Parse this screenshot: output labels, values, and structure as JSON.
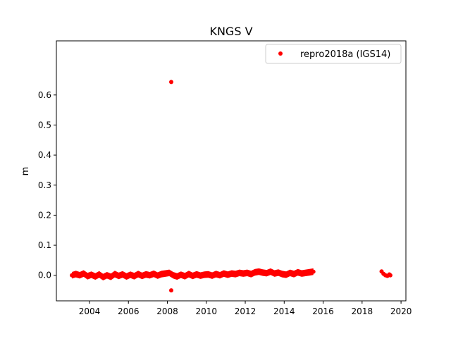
{
  "chart_data": {
    "type": "scatter",
    "title": "KNGS V",
    "xlabel": "",
    "ylabel": "m",
    "xlim": [
      2002.3,
      2020.25
    ],
    "ylim": [
      -0.085,
      0.78
    ],
    "x_ticks": [
      2004,
      2006,
      2008,
      2010,
      2012,
      2014,
      2016,
      2018,
      2020
    ],
    "y_ticks": [
      0.0,
      0.1,
      0.2,
      0.3,
      0.4,
      0.5,
      0.6
    ],
    "y_tick_labels": [
      "0.0",
      "0.1",
      "0.2",
      "0.3",
      "0.4",
      "0.5",
      "0.6"
    ],
    "grid": false,
    "legend_position": "upper right",
    "series": [
      {
        "name": "repro2018a (IGS14)",
        "color": "#ff0000",
        "marker": "circle",
        "x": [
          2003.1,
          2003.3,
          2003.5,
          2003.7,
          2003.9,
          2004.1,
          2004.3,
          2004.5,
          2004.7,
          2004.9,
          2005.1,
          2005.3,
          2005.5,
          2005.7,
          2005.9,
          2006.1,
          2006.3,
          2006.5,
          2006.7,
          2006.9,
          2007.1,
          2007.3,
          2007.5,
          2007.7,
          2007.9,
          2008.1,
          2008.3,
          2008.5,
          2008.7,
          2008.9,
          2009.1,
          2009.3,
          2009.5,
          2009.7,
          2009.9,
          2010.1,
          2010.3,
          2010.5,
          2010.7,
          2010.9,
          2011.1,
          2011.3,
          2011.5,
          2011.7,
          2011.9,
          2012.1,
          2012.3,
          2012.5,
          2012.7,
          2012.9,
          2013.1,
          2013.3,
          2013.5,
          2013.7,
          2013.9,
          2014.1,
          2014.3,
          2014.5,
          2014.7,
          2014.9,
          2015.1,
          2015.3,
          2015.5,
          2008.2,
          2008.2,
          2019.0,
          2019.1,
          2019.2,
          2019.3,
          2019.4,
          2019.45
        ],
        "y": [
          0.0,
          0.004,
          0.0,
          0.006,
          -0.003,
          0.002,
          -0.004,
          0.003,
          -0.006,
          0.0,
          -0.005,
          0.004,
          -0.002,
          0.003,
          -0.004,
          0.002,
          -0.003,
          0.004,
          -0.002,
          0.003,
          0.0,
          0.005,
          -0.001,
          0.004,
          0.006,
          0.008,
          0.0,
          -0.004,
          0.002,
          -0.003,
          0.004,
          -0.002,
          0.003,
          -0.001,
          0.002,
          0.003,
          -0.001,
          0.004,
          0.0,
          0.006,
          0.002,
          0.006,
          0.004,
          0.008,
          0.006,
          0.008,
          0.004,
          0.01,
          0.012,
          0.009,
          0.007,
          0.012,
          0.006,
          0.009,
          0.004,
          0.002,
          0.008,
          0.004,
          0.01,
          0.006,
          0.008,
          0.01,
          0.012,
          0.643,
          -0.05,
          0.013,
          0.005,
          0.0,
          -0.002,
          0.003,
          0.0
        ]
      }
    ]
  }
}
